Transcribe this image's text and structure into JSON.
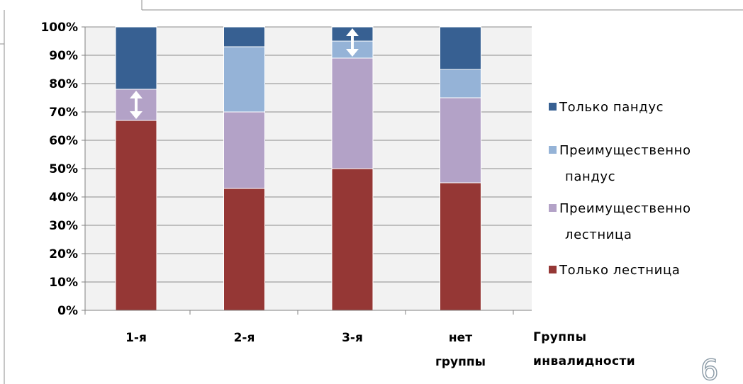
{
  "colors": {
    "plot_background": "#f2f2f2",
    "gridline": "#8c8c8c",
    "arrow": "#ffffff",
    "page_mark": "#8a9aa6"
  },
  "page_mark": "6",
  "chart_data": {
    "type": "bar",
    "stacked": true,
    "percent": true,
    "categories": [
      [
        "1-я"
      ],
      [
        "2-я"
      ],
      [
        "3-я"
      ],
      [
        "нет",
        "группы"
      ]
    ],
    "series": [
      {
        "name": "Только лестница",
        "color": "#953735",
        "values": [
          67,
          43,
          50,
          45
        ]
      },
      {
        "name": "Преимущественно лестница",
        "color": "#b3a2c7",
        "values": [
          11,
          27,
          39,
          30
        ]
      },
      {
        "name": "Преимущественно пандус",
        "color": "#95b3d7",
        "values": [
          0,
          23,
          6,
          10
        ]
      },
      {
        "name": "Только пандус",
        "color": "#376092",
        "values": [
          22,
          7,
          5,
          15
        ]
      }
    ],
    "legend": [
      {
        "series": 3,
        "lines": [
          "Только пандус"
        ]
      },
      {
        "series": 2,
        "lines": [
          "Преимущественно",
          "пандус"
        ]
      },
      {
        "series": 1,
        "lines": [
          "Преимущественно",
          "лестница"
        ]
      },
      {
        "series": 0,
        "lines": [
          "Только лестница"
        ]
      }
    ],
    "legend_position": "right",
    "xlabel": [
      "Группы",
      "инвалидности"
    ],
    "ylabel": "",
    "ylim": [
      0,
      100
    ],
    "y_ticks": [
      0,
      10,
      20,
      30,
      40,
      50,
      60,
      70,
      80,
      90,
      100
    ],
    "y_tick_labels": [
      "0%",
      "10%",
      "20%",
      "30%",
      "40%",
      "50%",
      "60%",
      "70%",
      "80%",
      "90%",
      "100%"
    ],
    "grid": true,
    "annotations": [
      {
        "type": "double-arrow",
        "category_index": 0,
        "from": 67,
        "to": 78
      },
      {
        "type": "double-arrow",
        "category_index": 2,
        "from": 89,
        "to": 100
      }
    ]
  }
}
